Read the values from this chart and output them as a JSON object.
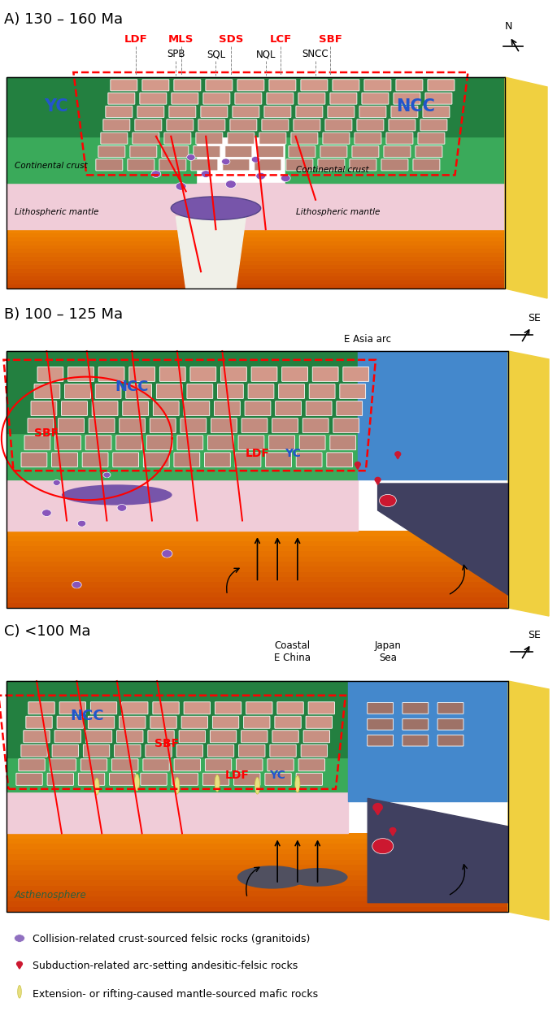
{
  "panel_A": {
    "title": "A) 130 – 160 Ma",
    "compass": "N",
    "labels_red": [
      "LDF",
      "MLS",
      "SDS",
      "LCF",
      "SBF"
    ],
    "labels_black": [
      "SPB",
      "SQL",
      "NQL",
      "SNCC"
    ],
    "labels_blue_text": [
      "YC",
      "NCC"
    ],
    "col_green": "#3aaa5a",
    "col_green_dark": "#238040",
    "col_pink": "#f0ccd8",
    "col_yellow": "#f0d040"
  },
  "panel_B": {
    "title": "B) 100 – 125 Ma",
    "compass": "SE",
    "labels_red": [
      "SBF",
      "LDF",
      "YC"
    ],
    "labels_blue_text": [
      "NCC"
    ],
    "extra_label": "E Asia arc",
    "col_green": "#3aaa5a",
    "col_green_dark": "#238040",
    "col_pink": "#f0ccd8",
    "col_yellow": "#f0d040",
    "col_blue": "#4488cc"
  },
  "panel_C": {
    "title": "C) <100 Ma",
    "compass": "SE",
    "labels_red": [
      "SBF",
      "LDF",
      "YC"
    ],
    "labels_blue_text": [
      "NCC"
    ],
    "extra_labels": [
      "Coastal\nE China",
      "Japan\nSea"
    ],
    "bottom_label": "Asthenosphere",
    "col_green": "#3aaa5a",
    "col_green_dark": "#238040",
    "col_pink": "#f0ccd8",
    "col_yellow": "#f0d040",
    "col_blue": "#4488cc"
  },
  "legend": [
    {
      "color": "#9070c0",
      "text": "Collision-related crust-sourced felsic rocks (granitoids)"
    },
    {
      "color": "#cc2040",
      "text": "Subduction-related arc-setting andesitic-felsic rocks"
    },
    {
      "color": "#e8e090",
      "text": "Extension- or rifting-caused mantle-sourced mafic rocks"
    }
  ]
}
